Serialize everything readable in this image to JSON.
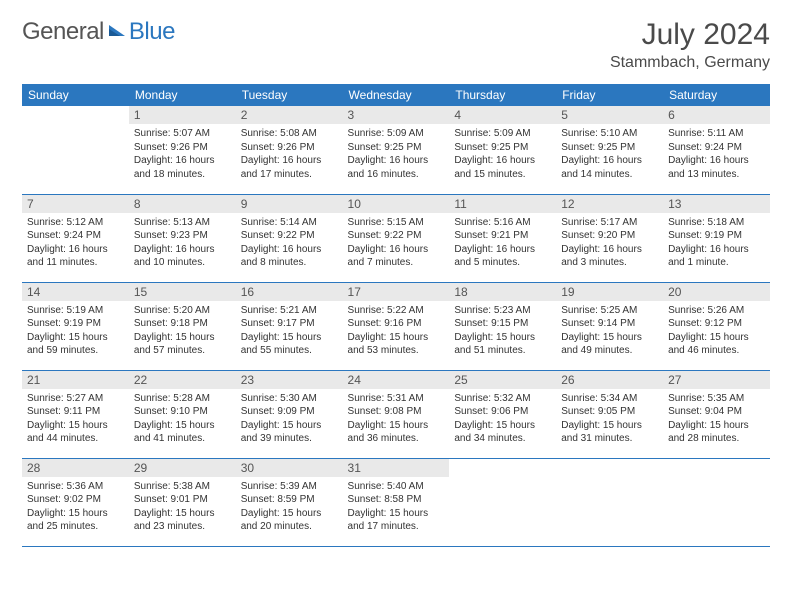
{
  "logo": {
    "text_gray": "General",
    "text_blue": "Blue"
  },
  "title": "July 2024",
  "location": "Stammbach, Germany",
  "colors": {
    "header_bg": "#2b77bf",
    "header_text": "#ffffff",
    "daynum_bg": "#e9e9e9",
    "border": "#2b77bf",
    "body_bg": "#ffffff",
    "text": "#333333"
  },
  "day_headers": [
    "Sunday",
    "Monday",
    "Tuesday",
    "Wednesday",
    "Thursday",
    "Friday",
    "Saturday"
  ],
  "weeks": [
    [
      null,
      {
        "n": "1",
        "sunrise": "5:07 AM",
        "sunset": "9:26 PM",
        "dl": "16 hours and 18 minutes."
      },
      {
        "n": "2",
        "sunrise": "5:08 AM",
        "sunset": "9:26 PM",
        "dl": "16 hours and 17 minutes."
      },
      {
        "n": "3",
        "sunrise": "5:09 AM",
        "sunset": "9:25 PM",
        "dl": "16 hours and 16 minutes."
      },
      {
        "n": "4",
        "sunrise": "5:09 AM",
        "sunset": "9:25 PM",
        "dl": "16 hours and 15 minutes."
      },
      {
        "n": "5",
        "sunrise": "5:10 AM",
        "sunset": "9:25 PM",
        "dl": "16 hours and 14 minutes."
      },
      {
        "n": "6",
        "sunrise": "5:11 AM",
        "sunset": "9:24 PM",
        "dl": "16 hours and 13 minutes."
      }
    ],
    [
      {
        "n": "7",
        "sunrise": "5:12 AM",
        "sunset": "9:24 PM",
        "dl": "16 hours and 11 minutes."
      },
      {
        "n": "8",
        "sunrise": "5:13 AM",
        "sunset": "9:23 PM",
        "dl": "16 hours and 10 minutes."
      },
      {
        "n": "9",
        "sunrise": "5:14 AM",
        "sunset": "9:22 PM",
        "dl": "16 hours and 8 minutes."
      },
      {
        "n": "10",
        "sunrise": "5:15 AM",
        "sunset": "9:22 PM",
        "dl": "16 hours and 7 minutes."
      },
      {
        "n": "11",
        "sunrise": "5:16 AM",
        "sunset": "9:21 PM",
        "dl": "16 hours and 5 minutes."
      },
      {
        "n": "12",
        "sunrise": "5:17 AM",
        "sunset": "9:20 PM",
        "dl": "16 hours and 3 minutes."
      },
      {
        "n": "13",
        "sunrise": "5:18 AM",
        "sunset": "9:19 PM",
        "dl": "16 hours and 1 minute."
      }
    ],
    [
      {
        "n": "14",
        "sunrise": "5:19 AM",
        "sunset": "9:19 PM",
        "dl": "15 hours and 59 minutes."
      },
      {
        "n": "15",
        "sunrise": "5:20 AM",
        "sunset": "9:18 PM",
        "dl": "15 hours and 57 minutes."
      },
      {
        "n": "16",
        "sunrise": "5:21 AM",
        "sunset": "9:17 PM",
        "dl": "15 hours and 55 minutes."
      },
      {
        "n": "17",
        "sunrise": "5:22 AM",
        "sunset": "9:16 PM",
        "dl": "15 hours and 53 minutes."
      },
      {
        "n": "18",
        "sunrise": "5:23 AM",
        "sunset": "9:15 PM",
        "dl": "15 hours and 51 minutes."
      },
      {
        "n": "19",
        "sunrise": "5:25 AM",
        "sunset": "9:14 PM",
        "dl": "15 hours and 49 minutes."
      },
      {
        "n": "20",
        "sunrise": "5:26 AM",
        "sunset": "9:12 PM",
        "dl": "15 hours and 46 minutes."
      }
    ],
    [
      {
        "n": "21",
        "sunrise": "5:27 AM",
        "sunset": "9:11 PM",
        "dl": "15 hours and 44 minutes."
      },
      {
        "n": "22",
        "sunrise": "5:28 AM",
        "sunset": "9:10 PM",
        "dl": "15 hours and 41 minutes."
      },
      {
        "n": "23",
        "sunrise": "5:30 AM",
        "sunset": "9:09 PM",
        "dl": "15 hours and 39 minutes."
      },
      {
        "n": "24",
        "sunrise": "5:31 AM",
        "sunset": "9:08 PM",
        "dl": "15 hours and 36 minutes."
      },
      {
        "n": "25",
        "sunrise": "5:32 AM",
        "sunset": "9:06 PM",
        "dl": "15 hours and 34 minutes."
      },
      {
        "n": "26",
        "sunrise": "5:34 AM",
        "sunset": "9:05 PM",
        "dl": "15 hours and 31 minutes."
      },
      {
        "n": "27",
        "sunrise": "5:35 AM",
        "sunset": "9:04 PM",
        "dl": "15 hours and 28 minutes."
      }
    ],
    [
      {
        "n": "28",
        "sunrise": "5:36 AM",
        "sunset": "9:02 PM",
        "dl": "15 hours and 25 minutes."
      },
      {
        "n": "29",
        "sunrise": "5:38 AM",
        "sunset": "9:01 PM",
        "dl": "15 hours and 23 minutes."
      },
      {
        "n": "30",
        "sunrise": "5:39 AM",
        "sunset": "8:59 PM",
        "dl": "15 hours and 20 minutes."
      },
      {
        "n": "31",
        "sunrise": "5:40 AM",
        "sunset": "8:58 PM",
        "dl": "15 hours and 17 minutes."
      },
      null,
      null,
      null
    ]
  ],
  "labels": {
    "sunrise": "Sunrise:",
    "sunset": "Sunset:",
    "daylight": "Daylight:"
  }
}
